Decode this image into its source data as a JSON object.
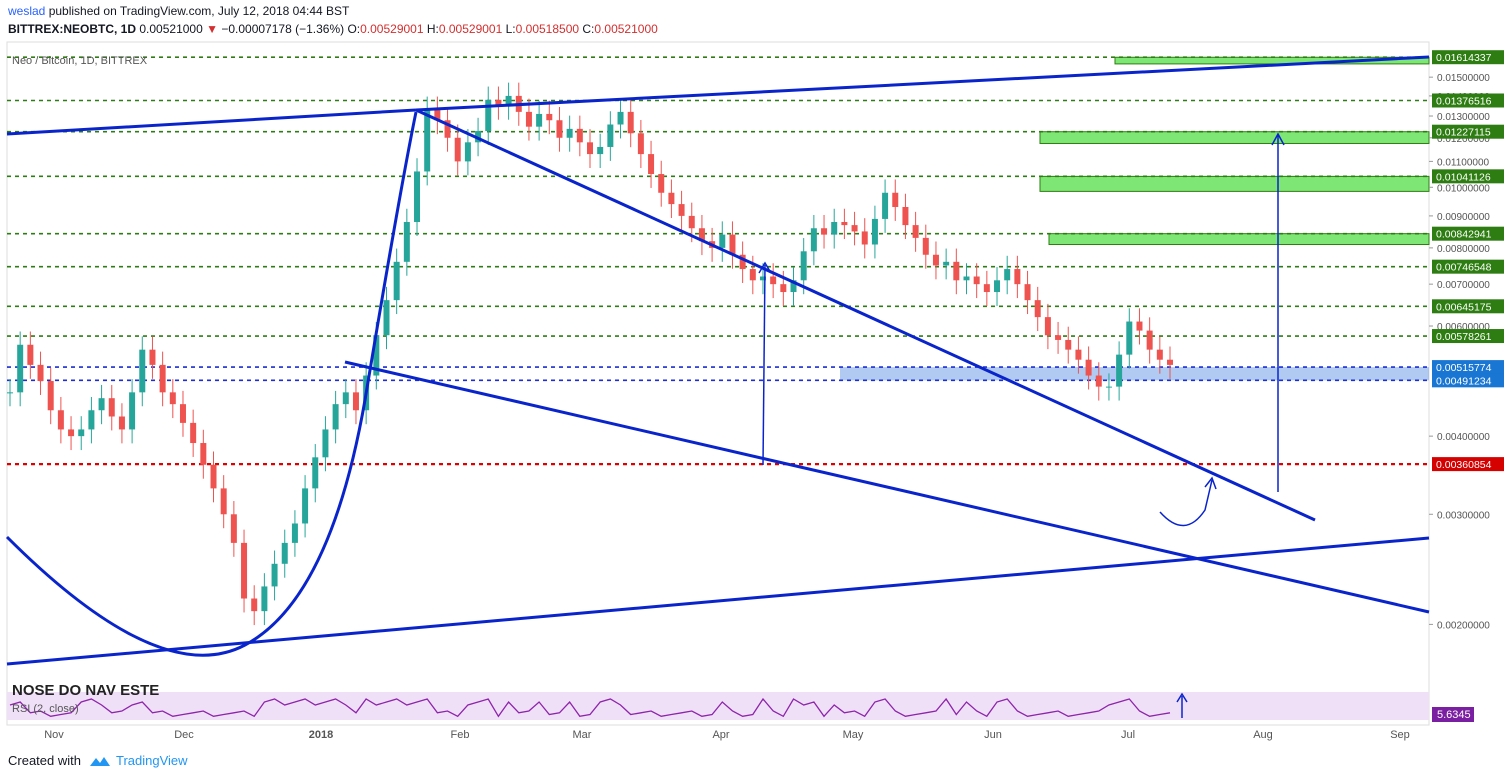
{
  "header": {
    "author": "weslad",
    "published_text": "published on TradingView.com, July 12, 2018 04:44 BST",
    "symbol_line": "BITTREX:NEOBTC, 1D",
    "last_price": "0.00521000",
    "change": "−0.00007178 (−1.36%)",
    "ohlc": {
      "o_label": "O:",
      "o": "0.00529001",
      "h_label": "H:",
      "h": "0.00529001",
      "l_label": "L:",
      "l": "0.00518500",
      "c_label": "C:",
      "c": "0.00521000"
    }
  },
  "legend": {
    "title": "Neo / Bitcoin, 1D, BITTREX",
    "rsi": "RSI (2, close)",
    "rsi_value": "5.6345",
    "overlay_text": "NOSE DO NAV ESTE"
  },
  "footer": {
    "created_with": "Created with",
    "brand": "TradingView"
  },
  "colors": {
    "bull": "#26a69a",
    "bear": "#ef5350",
    "trend": "#0a24cc",
    "level": "#2e7d12",
    "zone": "#66e25c",
    "red_level": "#e00000",
    "blue_level": "#1a2dd8",
    "rsi_line": "#8e24aa",
    "rsi_bg": "#efe0f8"
  },
  "chart_data": {
    "type": "candlestick",
    "title": "Neo / Bitcoin, 1D, BITTREX",
    "x_ticks": [
      "Nov",
      "Dec",
      "2018",
      "Feb",
      "Mar",
      "Apr",
      "May",
      "Jun",
      "Jul",
      "Aug",
      "Sep"
    ],
    "y_scale": "log",
    "ylim": [
      0.0016,
      0.0167
    ],
    "y_ticks": [
      "0.00200000",
      "0.00300000",
      "0.00400000",
      "0.00600000",
      "0.00700000",
      "0.00800000",
      "0.00900000",
      "0.01000000",
      "0.01100000",
      "0.01200000",
      "0.01300000",
      "0.01400000",
      "0.01500000"
    ],
    "levels": [
      {
        "value": 0.01614337,
        "label": "0.01614337",
        "kind": "resistance"
      },
      {
        "value": 0.01376516,
        "label": "0.01376516",
        "kind": "resistance"
      },
      {
        "value": 0.01227115,
        "label": "0.01227115",
        "kind": "resistance"
      },
      {
        "value": 0.01041126,
        "label": "0.01041126",
        "kind": "resistance"
      },
      {
        "value": 0.00842941,
        "label": "0.00842941",
        "kind": "resistance"
      },
      {
        "value": 0.00746548,
        "label": "0.00746548",
        "kind": "resistance"
      },
      {
        "value": 0.00645175,
        "label": "0.00645175",
        "kind": "resistance"
      },
      {
        "value": 0.00578261,
        "label": "0.00578261",
        "kind": "resistance"
      },
      {
        "value": 0.00515774,
        "label": "0.00515774",
        "kind": "support"
      },
      {
        "value": 0.00491234,
        "label": "0.00491234",
        "kind": "support"
      },
      {
        "value": 0.00360854,
        "label": "0.00360854",
        "kind": "stop"
      }
    ],
    "target_zones": [
      [
        0.01575,
        0.01614
      ],
      [
        0.01175,
        0.01227
      ],
      [
        0.00985,
        0.01041
      ],
      [
        0.0081,
        0.00843
      ]
    ],
    "support_zone": [
      0.00491234,
      0.00515774
    ],
    "close_series": [
      0.0047,
      0.0056,
      0.0052,
      0.0049,
      0.0044,
      0.0041,
      0.004,
      0.0041,
      0.0044,
      0.0046,
      0.0043,
      0.0041,
      0.0047,
      0.0055,
      0.0052,
      0.0047,
      0.0045,
      0.0042,
      0.0039,
      0.0036,
      0.0033,
      0.003,
      0.0027,
      0.0022,
      0.0021,
      0.0023,
      0.0025,
      0.0027,
      0.0029,
      0.0033,
      0.0037,
      0.0041,
      0.0045,
      0.0047,
      0.0044,
      0.005,
      0.0058,
      0.0066,
      0.0076,
      0.0088,
      0.0106,
      0.0133,
      0.0128,
      0.012,
      0.011,
      0.0118,
      0.0123,
      0.0138,
      0.0135,
      0.014,
      0.0132,
      0.0125,
      0.0131,
      0.0128,
      0.012,
      0.0124,
      0.0118,
      0.0113,
      0.0116,
      0.0126,
      0.0132,
      0.0122,
      0.0113,
      0.0105,
      0.0098,
      0.0094,
      0.009,
      0.0086,
      0.0082,
      0.008,
      0.0084,
      0.0078,
      0.0074,
      0.0071,
      0.0072,
      0.007,
      0.0068,
      0.0071,
      0.0079,
      0.0086,
      0.0084,
      0.0088,
      0.0087,
      0.0085,
      0.0081,
      0.0089,
      0.0098,
      0.0093,
      0.0087,
      0.0083,
      0.0078,
      0.0075,
      0.0076,
      0.0071,
      0.0072,
      0.007,
      0.0068,
      0.0071,
      0.0074,
      0.007,
      0.0066,
      0.0062,
      0.0058,
      0.0057,
      0.0055,
      0.0053,
      0.005,
      0.0048,
      0.0048,
      0.0054,
      0.0061,
      0.0059,
      0.0055,
      0.0053,
      0.0052
    ],
    "x_range_months": [
      "2017-10-25",
      "2018-09-28"
    ]
  }
}
